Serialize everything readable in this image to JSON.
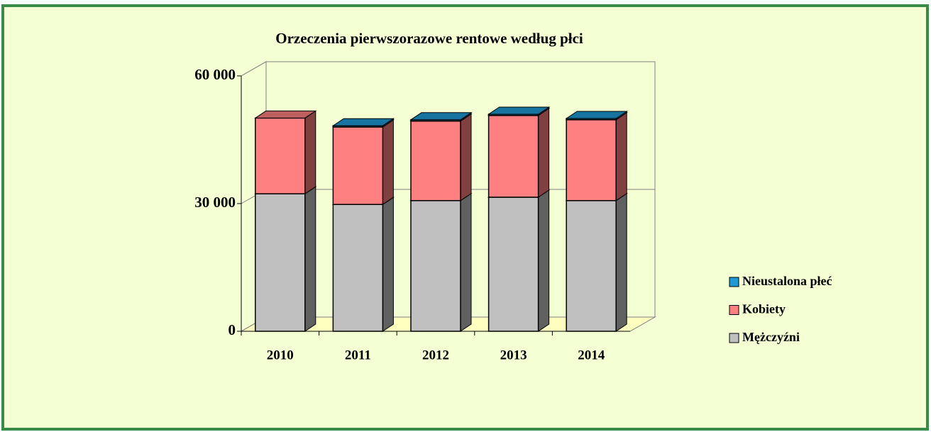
{
  "chart_data": {
    "type": "bar3d_stacked",
    "title": "Orzeczenia pierwszorazowe rentowe według płci",
    "categories": [
      "2010",
      "2011",
      "2012",
      "2013",
      "2014"
    ],
    "series": [
      {
        "name": "Mężczyźni",
        "color": "#c0c0c0",
        "values": [
          32300,
          29800,
          30700,
          31500,
          30700
        ]
      },
      {
        "name": "Kobiety",
        "color": "#ff8080",
        "values": [
          17800,
          18200,
          18700,
          19200,
          19000
        ]
      },
      {
        "name": "Nieustalona płeć",
        "color": "#1e9bd7",
        "values": [
          0,
          300,
          300,
          300,
          300
        ]
      }
    ],
    "ylim": [
      0,
      60000
    ],
    "yticks": [
      0,
      {
        "value": 30000,
        "label": "30 000"
      },
      {
        "value": 60000,
        "label": "60 000"
      }
    ],
    "grid": true,
    "legend": "right"
  }
}
